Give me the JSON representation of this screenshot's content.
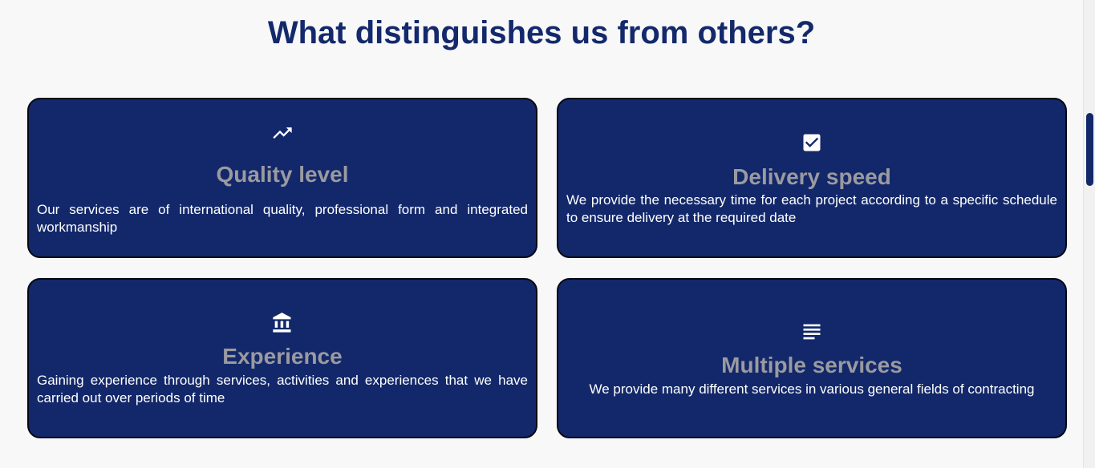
{
  "section": {
    "title": "What distinguishes us from others?"
  },
  "cards": [
    {
      "icon": "trending-up-icon",
      "title": "Quality level",
      "text": "Our services are of international quality, professional form and integrated workmanship"
    },
    {
      "icon": "checkbox-checked-icon",
      "title": "Delivery speed",
      "text": "We provide the necessary time for each project according to a specific schedule to ensure delivery at the required date"
    },
    {
      "icon": "bank-icon",
      "title": "Experience",
      "text": "Gaining experience through services, activities and experiences that we have carried out over periods of time"
    },
    {
      "icon": "notes-icon",
      "title": "Multiple services",
      "text": "We provide many different services in various general fields of contracting"
    }
  ],
  "colors": {
    "background": "#f8f8f9",
    "title": "#13296b",
    "card": "#13286a",
    "card_title": "#9a9aa0",
    "card_text": "#ffffff"
  }
}
